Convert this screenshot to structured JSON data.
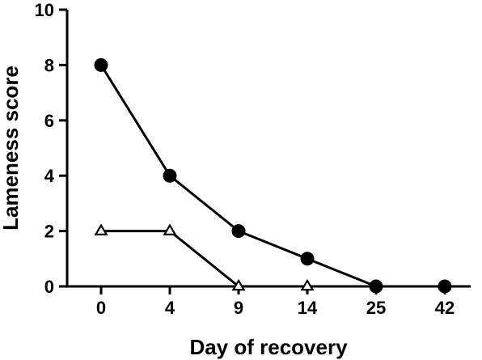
{
  "chart_data": {
    "type": "line",
    "categories": [
      "0",
      "4",
      "9",
      "14",
      "25",
      "42"
    ],
    "xlabel": "Day of recovery",
    "ylabel": "Lameness score",
    "ylim": [
      0,
      10
    ],
    "yticks": [
      0,
      2,
      4,
      6,
      8,
      10
    ],
    "grid": false,
    "series": [
      {
        "marker": "circle-filled",
        "values": [
          8,
          4,
          2,
          1,
          0,
          0
        ]
      },
      {
        "marker": "triangle-open",
        "values": [
          2,
          2,
          0,
          0,
          null,
          null
        ]
      }
    ]
  }
}
